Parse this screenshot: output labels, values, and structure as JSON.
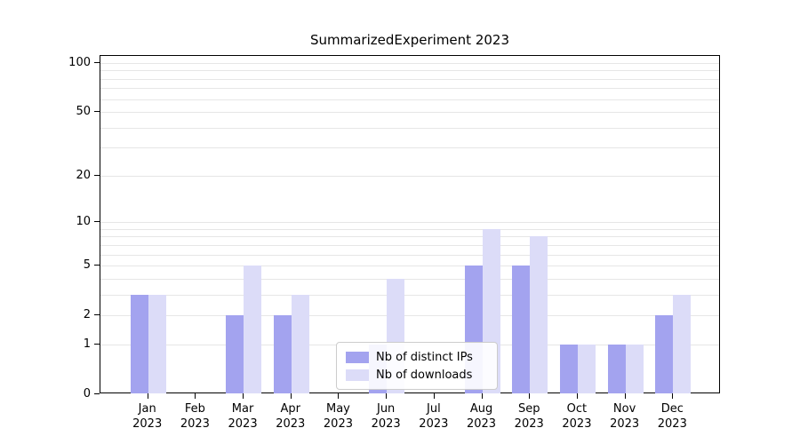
{
  "title": "SummarizedExperiment 2023",
  "chart_data": {
    "type": "bar",
    "title": "SummarizedExperiment 2023",
    "scale": "log1p",
    "year_label": "2023",
    "categories": [
      "Jan",
      "Feb",
      "Mar",
      "Apr",
      "May",
      "Jun",
      "Jul",
      "Aug",
      "Sep",
      "Oct",
      "Nov",
      "Dec"
    ],
    "series": [
      {
        "name": "Nb of distinct IPs",
        "color": "#a3a3ef",
        "values": [
          3,
          0,
          2,
          2,
          0,
          1,
          0,
          5,
          5,
          1,
          1,
          2
        ]
      },
      {
        "name": "Nb of downloads",
        "color": "#dcdcf8",
        "values": [
          3,
          0,
          5,
          3,
          0,
          4,
          0,
          9,
          8,
          1,
          1,
          3
        ]
      }
    ],
    "yticks": [
      0,
      1,
      2,
      5,
      10,
      20,
      50,
      100
    ],
    "grid_values": [
      1,
      2,
      3,
      4,
      5,
      6,
      7,
      8,
      9,
      10,
      20,
      30,
      40,
      50,
      60,
      70,
      80,
      90,
      100
    ],
    "ylim": [
      0,
      100
    ],
    "xlabel": "",
    "ylabel": "",
    "grid": "horizontal",
    "legend_position": "bottom-center"
  }
}
